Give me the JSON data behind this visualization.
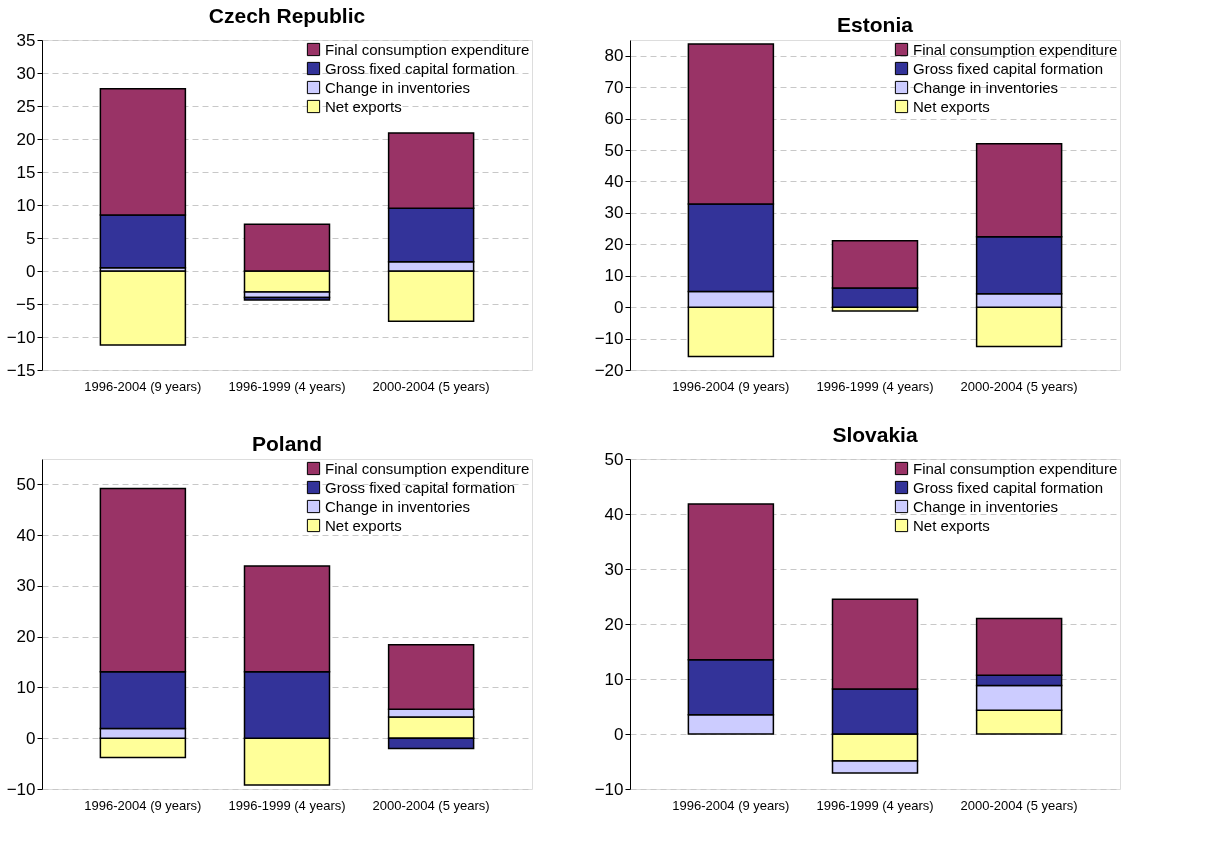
{
  "chart_data": [
    {
      "type": "bar",
      "stacked": true,
      "title": "Czech Republic",
      "categories": [
        "1996-2004 (9 years)",
        "1996-1999 (4 years)",
        "2000-2004 (5 years)"
      ],
      "ylim": [
        -15,
        35
      ],
      "yticks": [
        -15,
        -10,
        -5,
        0,
        5,
        10,
        15,
        20,
        25,
        30,
        35
      ],
      "grid": "y",
      "legend": "top right",
      "series": [
        {
          "name": "Net exports",
          "color": "#ffff99",
          "values": [
            -11.2,
            -3.2,
            -7.6
          ]
        },
        {
          "name": "Change in inventories",
          "color": "#ccccff",
          "values": [
            0.5,
            -0.8,
            1.4
          ]
        },
        {
          "name": "Gross fixed capital formation",
          "color": "#333399",
          "values": [
            8.0,
            -0.4,
            8.1
          ]
        },
        {
          "name": "Final consumption expenditure",
          "color": "#993366",
          "values": [
            19.1,
            7.1,
            11.4
          ]
        }
      ]
    },
    {
      "type": "bar",
      "stacked": true,
      "title": "Estonia",
      "categories": [
        "1996-2004 (9 years)",
        "1996-1999 (4 years)",
        "2000-2004 (5 years)"
      ],
      "ylim": [
        -20,
        85
      ],
      "yticks": [
        -20,
        -10,
        0,
        10,
        20,
        30,
        40,
        50,
        60,
        70,
        80
      ],
      "grid": "y",
      "legend": "top right",
      "series": [
        {
          "name": "Net exports",
          "color": "#ffff99",
          "values": [
            -15.7,
            -1.2,
            -12.5
          ]
        },
        {
          "name": "Change in inventories",
          "color": "#ccccff",
          "values": [
            5.0,
            null,
            4.3
          ]
        },
        {
          "name": "Gross fixed capital formation",
          "color": "#333399",
          "values": [
            27.8,
            6.1,
            18.1
          ]
        },
        {
          "name": "Final consumption expenditure",
          "color": "#993366",
          "values": [
            50.9,
            15.0,
            29.6
          ]
        }
      ]
    },
    {
      "type": "bar",
      "stacked": true,
      "title": "Poland",
      "categories": [
        "1996-2004 (9 years)",
        "1996-1999 (4 years)",
        "2000-2004 (5 years)"
      ],
      "ylim": [
        -10,
        55
      ],
      "yticks": [
        -10,
        0,
        10,
        20,
        30,
        40,
        50
      ],
      "grid": "y",
      "legend": "top right",
      "series": [
        {
          "name": "Net exports",
          "color": "#ffff99",
          "values": [
            -3.8,
            -9.2,
            4.2
          ]
        },
        {
          "name": "Change in inventories",
          "color": "#ccccff",
          "values": [
            1.9,
            null,
            1.5
          ]
        },
        {
          "name": "Gross fixed capital formation",
          "color": "#333399",
          "values": [
            11.2,
            13.1,
            -2.0
          ]
        },
        {
          "name": "Final consumption expenditure",
          "color": "#993366",
          "values": [
            36.1,
            20.8,
            12.7
          ]
        }
      ]
    },
    {
      "type": "bar",
      "stacked": true,
      "title": "Slovakia",
      "categories": [
        "1996-2004 (9 years)",
        "1996-1999 (4 years)",
        "2000-2004 (5 years)"
      ],
      "ylim": [
        -10,
        50
      ],
      "yticks": [
        -10,
        0,
        10,
        20,
        30,
        40,
        50
      ],
      "grid": "y",
      "legend": "top right",
      "series": [
        {
          "name": "Net exports",
          "color": "#ffff99",
          "values": [
            null,
            -4.9,
            4.3
          ]
        },
        {
          "name": "Change in inventories",
          "color": "#ccccff",
          "values": [
            3.5,
            -2.2,
            4.5
          ]
        },
        {
          "name": "Gross fixed capital formation",
          "color": "#333399",
          "values": [
            10.0,
            8.2,
            1.9
          ]
        },
        {
          "name": "Final consumption expenditure",
          "color": "#993366",
          "values": [
            28.3,
            16.3,
            10.3
          ]
        }
      ]
    }
  ]
}
